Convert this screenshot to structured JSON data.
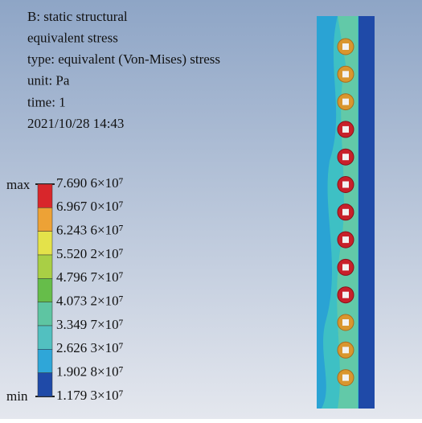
{
  "header": {
    "lines": [
      "B: static structural",
      "equivalent stress",
      "type: equivalent (Von-Mises) stress",
      "unit: Pa",
      "time: 1",
      "2021/10/28 14:43"
    ]
  },
  "legend": {
    "max_label": "max",
    "min_label": "min",
    "labels": [
      "7.690 6×10⁷",
      "6.967 0×10⁷",
      "6.243 6×10⁷",
      "5.520 2×10⁷",
      "4.796 7×10⁷",
      "4.073 2×10⁷",
      "3.349 7×10⁷",
      "2.626 3×10⁷",
      "1.902 8×10⁷",
      "1.179 3×10⁷"
    ]
  }
}
